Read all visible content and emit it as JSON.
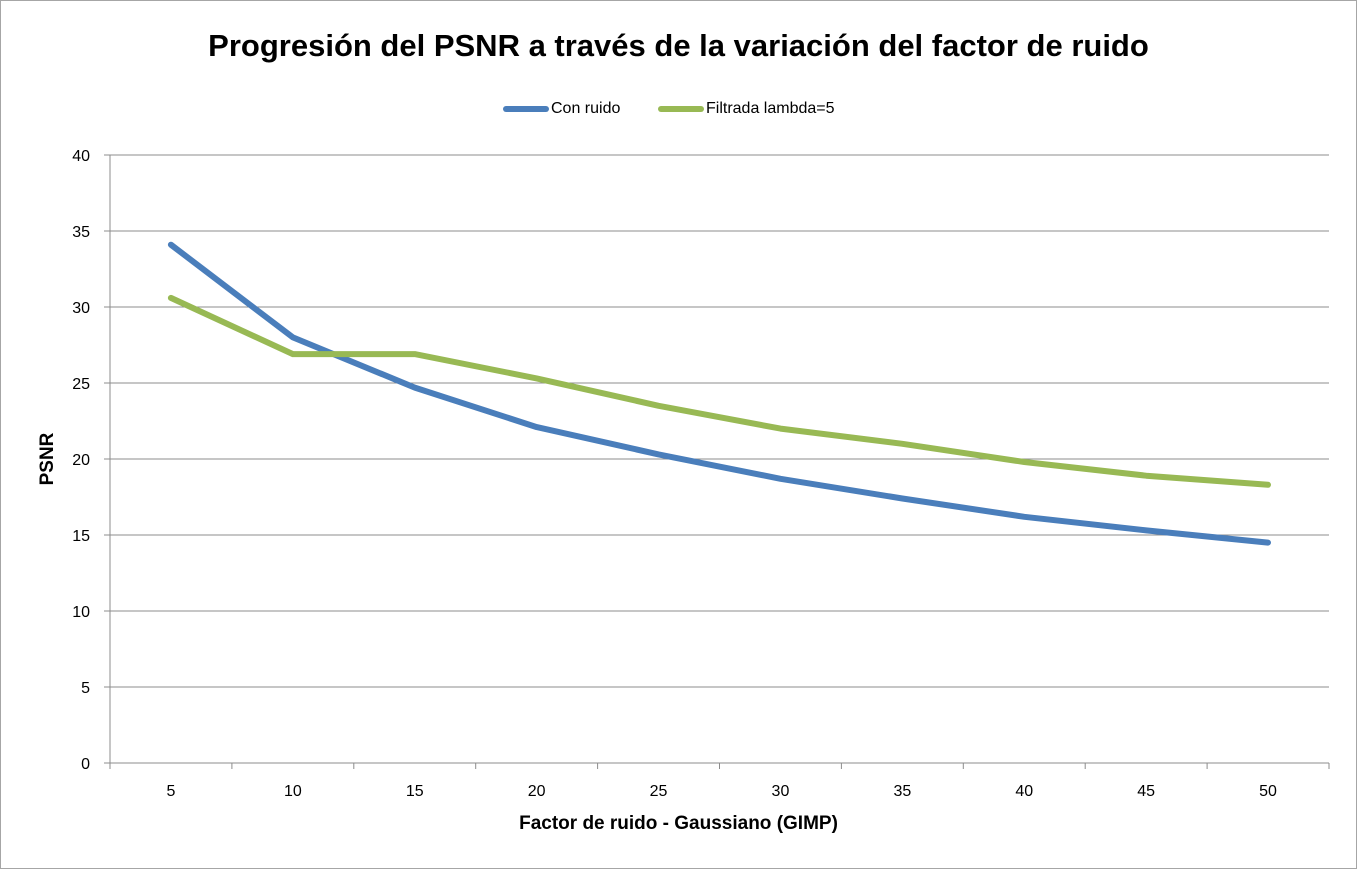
{
  "chart_data": {
    "type": "line",
    "title": "Progresión del PSNR a través de la variación del factor de ruido",
    "xlabel": "Factor de ruido - Gaussiano (GIMP)",
    "ylabel": "PSNR",
    "categories": [
      "5",
      "10",
      "15",
      "20",
      "25",
      "30",
      "35",
      "40",
      "45",
      "50"
    ],
    "ylim": [
      0,
      40
    ],
    "yticks": [
      "0",
      "5",
      "10",
      "15",
      "20",
      "25",
      "30",
      "35",
      "40"
    ],
    "grid": "horizontal",
    "legend_position": "top",
    "series": [
      {
        "name": "Con ruido",
        "color": "#4a7ebb",
        "values": [
          34.1,
          28.0,
          24.7,
          22.1,
          20.3,
          18.7,
          17.4,
          16.2,
          15.3,
          14.5
        ]
      },
      {
        "name": "Filtrada lambda=5",
        "color": "#98b954",
        "values": [
          30.6,
          26.9,
          26.9,
          25.3,
          23.5,
          22.0,
          21.0,
          19.8,
          18.9,
          18.3
        ]
      }
    ]
  }
}
